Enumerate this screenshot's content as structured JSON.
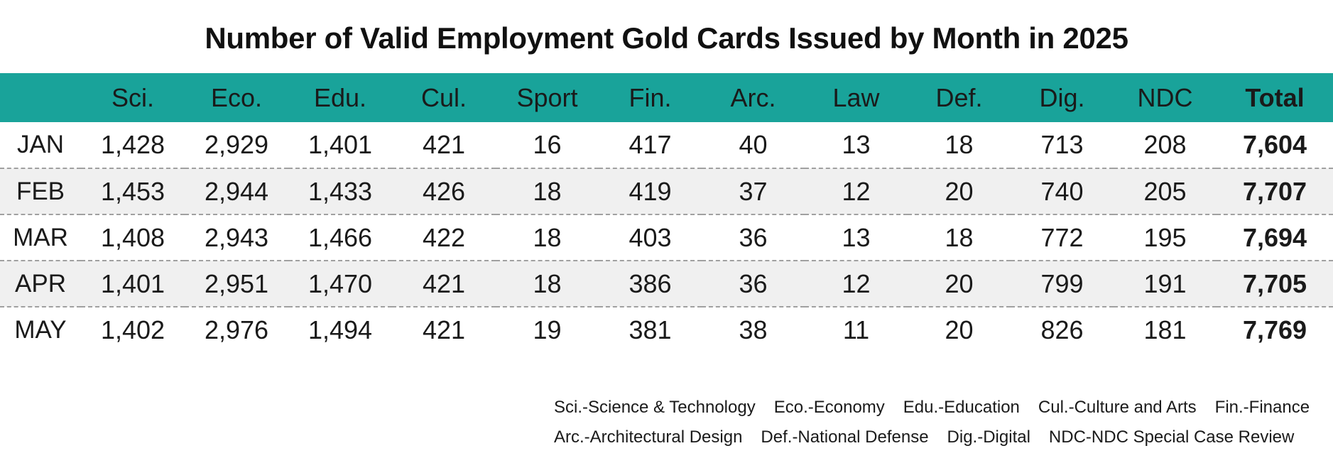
{
  "chart_data": {
    "type": "table",
    "title": "Number of Valid Employment Gold Cards Issued by Month in 2025",
    "columns": [
      "",
      "Sci.",
      "Eco.",
      "Edu.",
      "Cul.",
      "Sport",
      "Fin.",
      "Arc.",
      "Law",
      "Def.",
      "Dig.",
      "NDC",
      "Total"
    ],
    "rows": [
      {
        "month": "JAN",
        "values": [
          "1,428",
          "2,929",
          "1,401",
          "421",
          "16",
          "417",
          "40",
          "13",
          "18",
          "713",
          "208"
        ],
        "total": "7,604"
      },
      {
        "month": "FEB",
        "values": [
          "1,453",
          "2,944",
          "1,433",
          "426",
          "18",
          "419",
          "37",
          "12",
          "20",
          "740",
          "205"
        ],
        "total": "7,707"
      },
      {
        "month": "MAR",
        "values": [
          "1,408",
          "2,943",
          "1,466",
          "422",
          "18",
          "403",
          "36",
          "13",
          "18",
          "772",
          "195"
        ],
        "total": "7,694"
      },
      {
        "month": "APR",
        "values": [
          "1,401",
          "2,951",
          "1,470",
          "421",
          "18",
          "386",
          "36",
          "12",
          "20",
          "799",
          "191"
        ],
        "total": "7,705"
      },
      {
        "month": "MAY",
        "values": [
          "1,402",
          "2,976",
          "1,494",
          "421",
          "19",
          "381",
          "38",
          "11",
          "20",
          "826",
          "181"
        ],
        "total": "7,769"
      }
    ],
    "legend": [
      [
        "Sci.-Science & Technology",
        "Eco.-Economy",
        "Edu.-Education",
        "Cul.-Culture and Arts",
        "Fin.-Finance"
      ],
      [
        "Arc.-Architectural Design",
        "Def.-National Defense",
        "Dig.-Digital",
        "NDC-NDC Special Case Review"
      ]
    ]
  },
  "colors": {
    "header_background": "#19a39a",
    "alt_row_background": "#f0f0f0",
    "row_divider": "#a0a0a0"
  }
}
